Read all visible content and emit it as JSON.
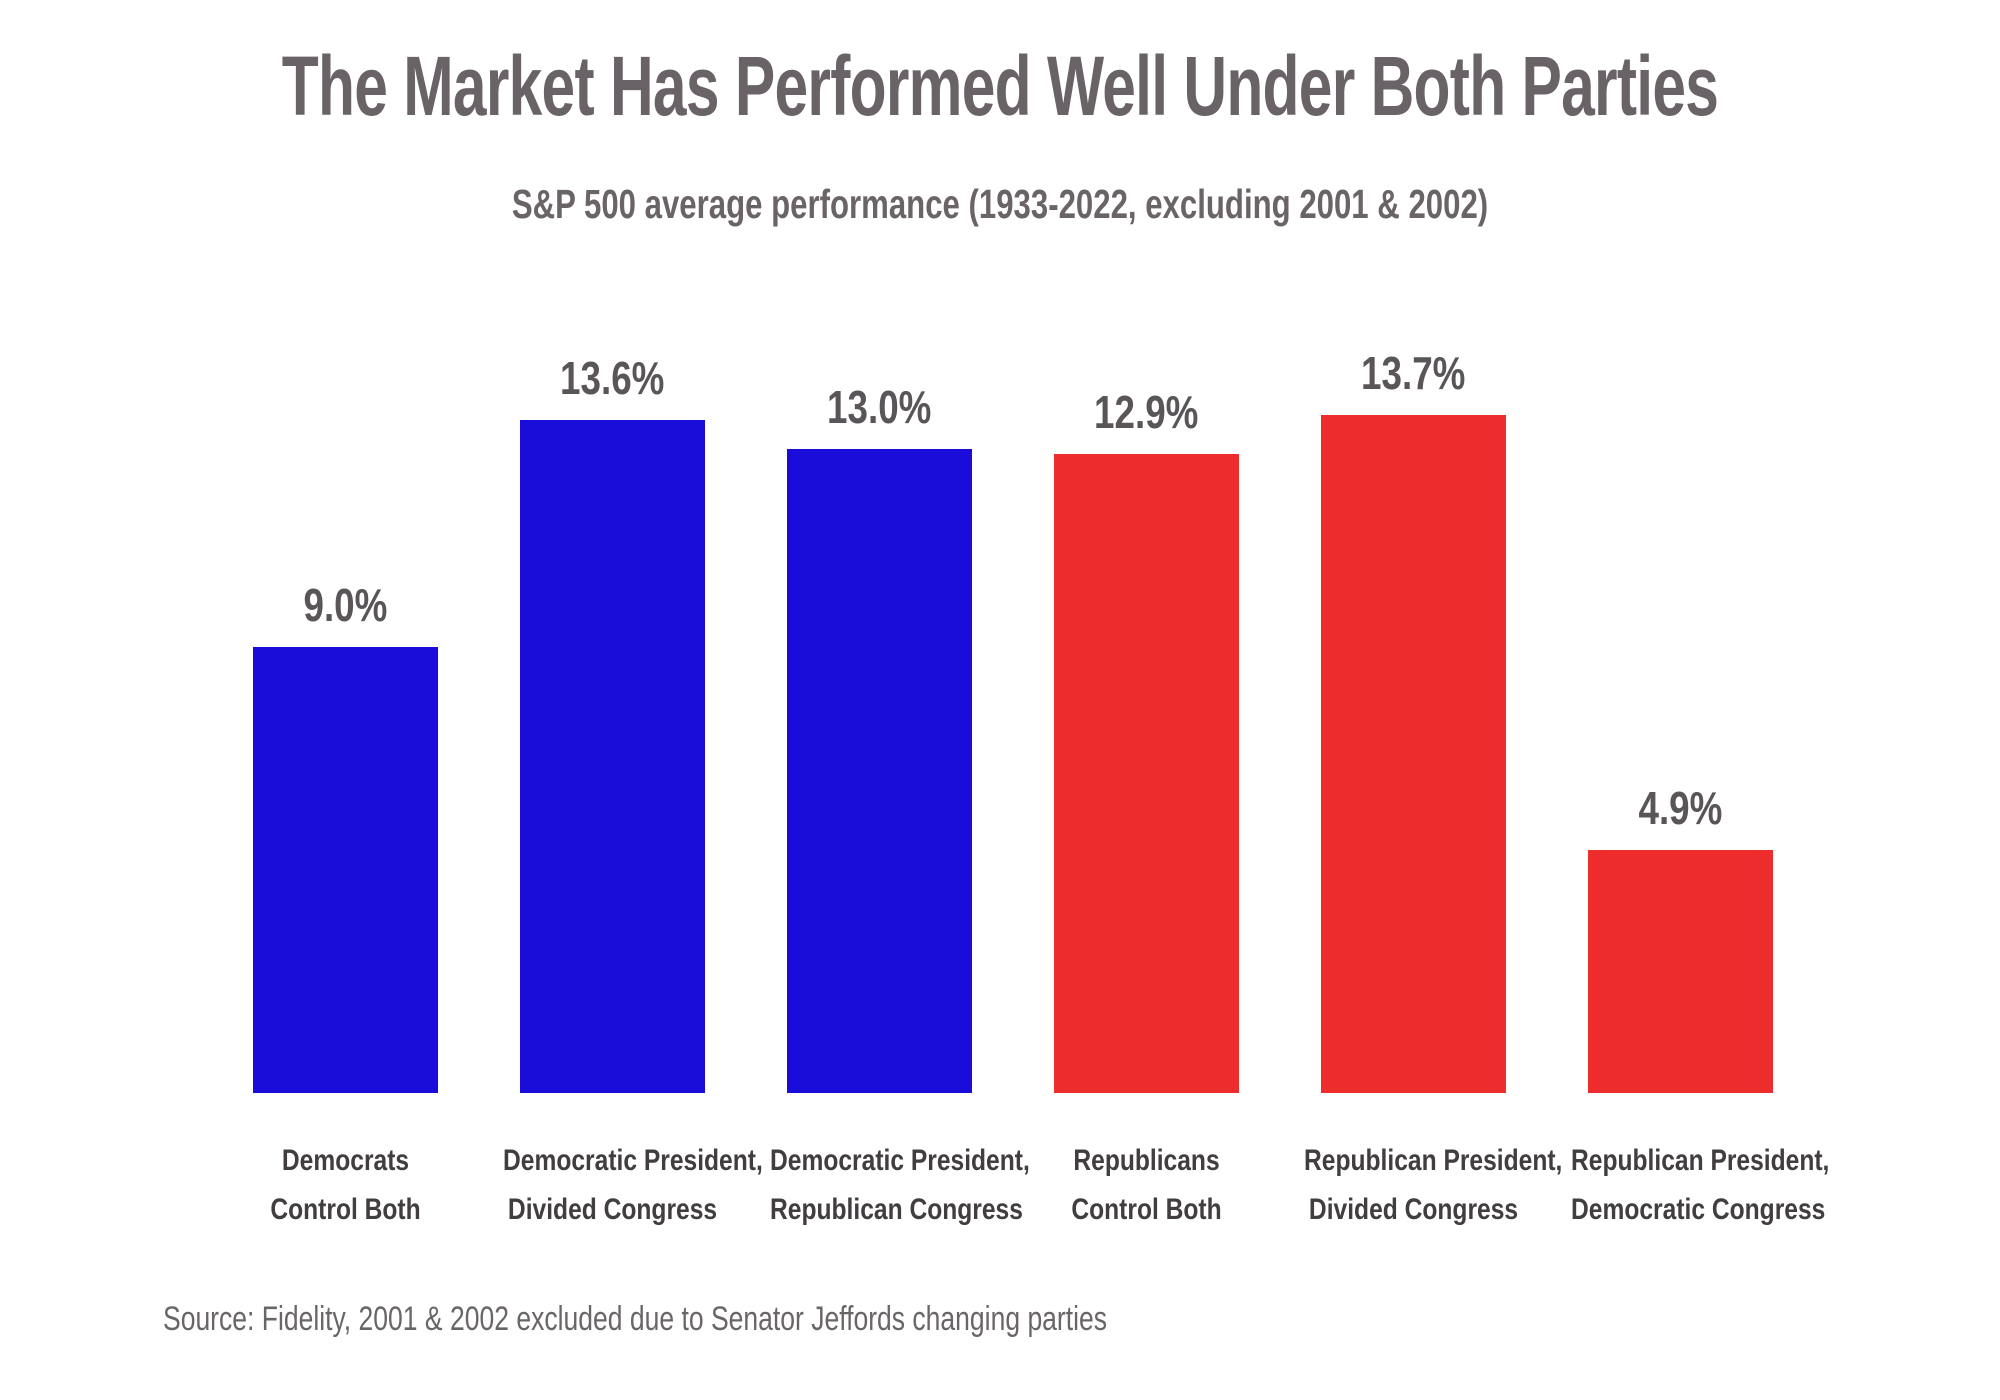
{
  "page": {
    "background": "#FFFFFF"
  },
  "chart_data": {
    "type": "bar",
    "title": "The Market Has Performed Well Under Both Parties",
    "subtitle": "S&P 500 average performance (1933-2022, excluding 2001 & 2002)",
    "source": "Source: Fidelity, 2001 & 2002 excluded due to Senator Jeffords changing parties",
    "categories": [
      "Democrats Control Both",
      "Democratic President, Divided Congress",
      "Democratic President, Republican Congress",
      "Republicans Control Both",
      "Republican President, Divided Congress",
      "Republican President, Democratic Congress"
    ],
    "category_lines": [
      [
        "Democrats",
        "Control Both"
      ],
      [
        "Democratic President,",
        "Divided Congress"
      ],
      [
        "Democratic President,",
        "Republican Congress"
      ],
      [
        "Republicans",
        "Control Both"
      ],
      [
        "Republican President,",
        "Divided Congress"
      ],
      [
        "Republican President,",
        "Democratic Congress"
      ]
    ],
    "values": [
      9.0,
      13.6,
      13.0,
      12.9,
      13.7,
      4.9
    ],
    "value_labels": [
      "9.0%",
      "13.6%",
      "13.0%",
      "12.9%",
      "13.7%",
      "4.9%"
    ],
    "bar_colors": [
      "#1A0DD9",
      "#1A0DD9",
      "#1A0DD9",
      "#ED2D2B",
      "#ED2D2B",
      "#ED2D2B"
    ],
    "ylim": [
      0,
      14
    ],
    "grid": false,
    "legend": "none",
    "axes_shown": false,
    "colors": {
      "democrat_blue": "#1A0DD9",
      "republican_red": "#ED2D2B",
      "title_gray": "#696367",
      "subtitle_gray": "#6B6467",
      "value_label_gray": "#5A5559",
      "category_label_gray": "#413D40",
      "source_gray": "#6A6568"
    }
  }
}
